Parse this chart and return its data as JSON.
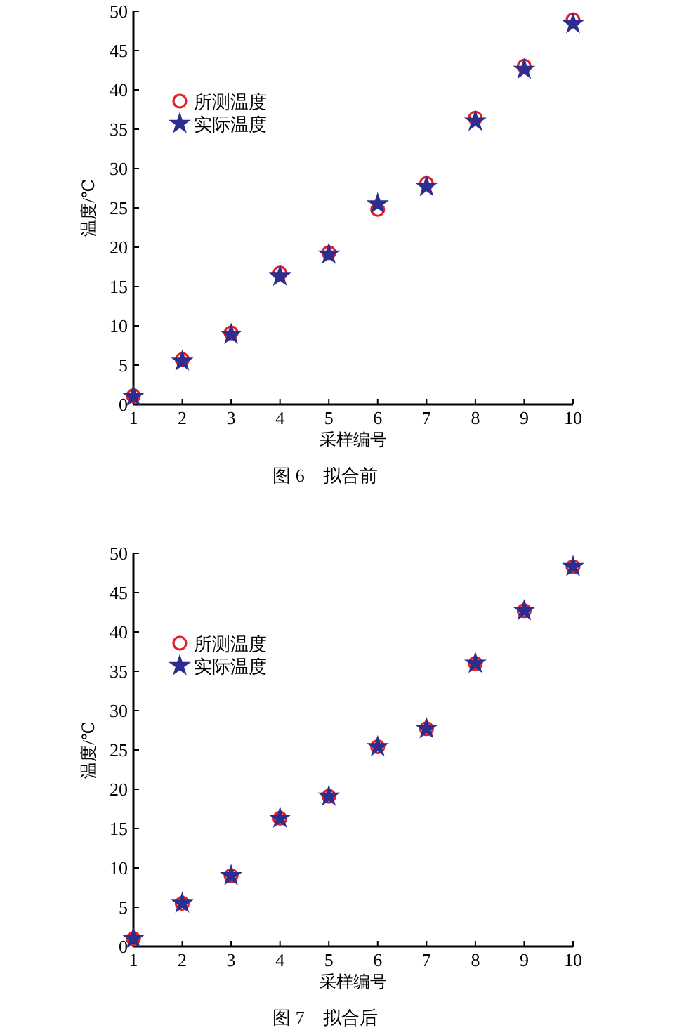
{
  "chart_data": [
    {
      "type": "scatter",
      "title": "图 6　拟合前",
      "xlabel": "采样编号",
      "ylabel": "温度/℃",
      "x": [
        1,
        2,
        3,
        4,
        5,
        6,
        7,
        8,
        9,
        10
      ],
      "xlim": [
        1,
        10
      ],
      "xticks": [
        1,
        2,
        3,
        4,
        5,
        6,
        7,
        8,
        9,
        10
      ],
      "ylim": [
        0,
        50
      ],
      "yticks": [
        0,
        5,
        10,
        15,
        20,
        25,
        30,
        35,
        40,
        45,
        50
      ],
      "legend": "top left",
      "grid": false,
      "series": [
        {
          "name": "所测温度",
          "color": "#e0202a",
          "marker": "circle",
          "values": [
            1.1,
            5.7,
            9.1,
            16.7,
            19.3,
            24.8,
            28.1,
            36.4,
            43.0,
            48.9
          ]
        },
        {
          "name": "实际温度",
          "color": "#2b2d8f",
          "marker": "star",
          "values": [
            1.0,
            5.5,
            8.9,
            16.3,
            19.1,
            25.5,
            27.7,
            36.0,
            42.6,
            48.4
          ]
        }
      ]
    },
    {
      "type": "scatter",
      "title": "图 7　拟合后",
      "xlabel": "采样编号",
      "ylabel": "温度/℃",
      "x": [
        1,
        2,
        3,
        4,
        5,
        6,
        7,
        8,
        9,
        10
      ],
      "xlim": [
        1,
        10
      ],
      "xticks": [
        1,
        2,
        3,
        4,
        5,
        6,
        7,
        8,
        9,
        10
      ],
      "ylim": [
        0,
        50
      ],
      "yticks": [
        0,
        5,
        10,
        15,
        20,
        25,
        30,
        35,
        40,
        45,
        50
      ],
      "legend": "top left",
      "grid": false,
      "series": [
        {
          "name": "所测温度",
          "color": "#e0202a",
          "marker": "circle",
          "values": [
            1.0,
            5.5,
            9.0,
            16.3,
            19.1,
            25.4,
            27.7,
            36.0,
            42.7,
            48.3
          ]
        },
        {
          "name": "实际温度",
          "color": "#2b2d8f",
          "marker": "star",
          "values": [
            1.0,
            5.5,
            9.0,
            16.3,
            19.1,
            25.4,
            27.7,
            36.0,
            42.7,
            48.3
          ]
        }
      ]
    }
  ]
}
